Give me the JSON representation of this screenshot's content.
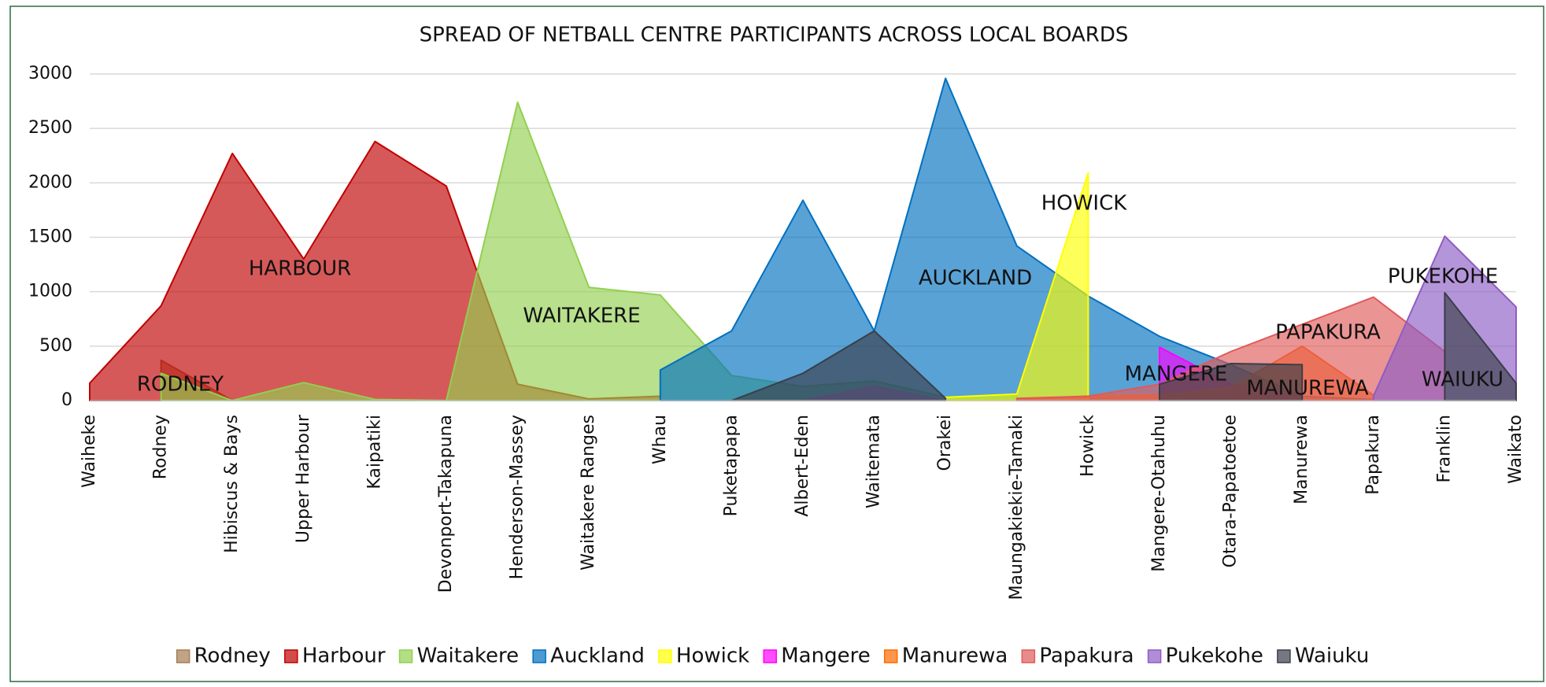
{
  "chart_data": {
    "type": "area",
    "title": "SPREAD OF NETBALL CENTRE PARTICIPANTS ACROSS LOCAL BOARDS",
    "categories": [
      "Waiheke",
      "Rodney",
      "Hibiscus & Bays",
      "Upper Harbour",
      "Kaipatiki",
      "Devonport-Takapuna",
      "Henderson-Massey",
      "Waitakere Ranges",
      "Whau",
      "Puketapapa",
      "Albert-Eden",
      "Waitemata",
      "Orakei",
      "Maungakiekie-Tamaki",
      "Howick",
      "Mangere-Otahuhu",
      "Otara-Papatoetoe",
      "Manurewa",
      "Papakura",
      "Franklin",
      "Waikato"
    ],
    "series": [
      {
        "name": "Rodney",
        "color": "#a67c52",
        "values": [
          null,
          370,
          0,
          null,
          null,
          null,
          null,
          null,
          null,
          null,
          null,
          null,
          null,
          null,
          null,
          null,
          null,
          null,
          null,
          null,
          null
        ]
      },
      {
        "name": "Harbour",
        "color": "#c00000",
        "values": [
          160,
          870,
          2270,
          1300,
          2380,
          1970,
          150,
          15,
          40,
          null,
          null,
          null,
          null,
          null,
          null,
          null,
          null,
          null,
          null,
          null,
          null
        ]
      },
      {
        "name": "Waitakere",
        "color": "#92d050",
        "values": [
          null,
          250,
          0,
          165,
          10,
          0,
          2740,
          1040,
          970,
          230,
          130,
          180,
          30,
          60,
          null,
          null,
          null,
          null,
          null,
          null,
          null
        ]
      },
      {
        "name": "Auckland",
        "color": "#0070c0",
        "values": [
          null,
          null,
          null,
          null,
          null,
          null,
          null,
          null,
          280,
          640,
          1840,
          640,
          2960,
          1420,
          960,
          590,
          330,
          40,
          10,
          null,
          null
        ]
      },
      {
        "name": "Howick",
        "color": "#ffff00",
        "values": [
          null,
          null,
          null,
          null,
          null,
          null,
          null,
          null,
          null,
          null,
          null,
          null,
          30,
          60,
          2090,
          null,
          null,
          null,
          null,
          null,
          null
        ]
      },
      {
        "name": "Mangere",
        "color": "#ff00ff",
        "values": [
          null,
          null,
          null,
          null,
          null,
          null,
          null,
          null,
          null,
          null,
          null,
          null,
          null,
          null,
          null,
          490,
          150,
          60,
          null,
          null,
          null
        ]
      },
      {
        "name": "Manurewa",
        "color": "#ff6a00",
        "values": [
          null,
          null,
          null,
          null,
          null,
          null,
          null,
          null,
          null,
          null,
          null,
          null,
          null,
          10,
          40,
          50,
          120,
          500,
          50,
          null,
          null
        ]
      },
      {
        "name": "Papakura",
        "color": "#e05a5a",
        "values": [
          null,
          null,
          null,
          null,
          null,
          null,
          null,
          null,
          null,
          null,
          null,
          null,
          null,
          20,
          40,
          150,
          450,
          700,
          950,
          450,
          null
        ]
      },
      {
        "name": "Pukekohe",
        "color": "#8e5cc4",
        "values": [
          null,
          null,
          null,
          null,
          null,
          null,
          null,
          null,
          null,
          null,
          0,
          130,
          0,
          null,
          null,
          null,
          null,
          null,
          40,
          1510,
          860
        ]
      },
      {
        "name": "Waiuku",
        "color": "#3a3f4a",
        "values": [
          null,
          null,
          null,
          null,
          null,
          null,
          null,
          null,
          null,
          0,
          250,
          640,
          20,
          null,
          null,
          150,
          340,
          330,
          null,
          990,
          160
        ]
      }
    ],
    "annotations": [
      "HARBOUR",
      "RODNEY",
      "WAITAKERE",
      "AUCKLAND",
      "HOWICK",
      "MANGERE",
      "MANUREWA",
      "PAPAKURA",
      "PUKEKOHE",
      "WAIUKU"
    ],
    "ylim": [
      0,
      3000
    ],
    "yticks": [
      0,
      500,
      1000,
      1500,
      2000,
      2500,
      3000
    ],
    "grid": true,
    "legend": "bottom"
  }
}
